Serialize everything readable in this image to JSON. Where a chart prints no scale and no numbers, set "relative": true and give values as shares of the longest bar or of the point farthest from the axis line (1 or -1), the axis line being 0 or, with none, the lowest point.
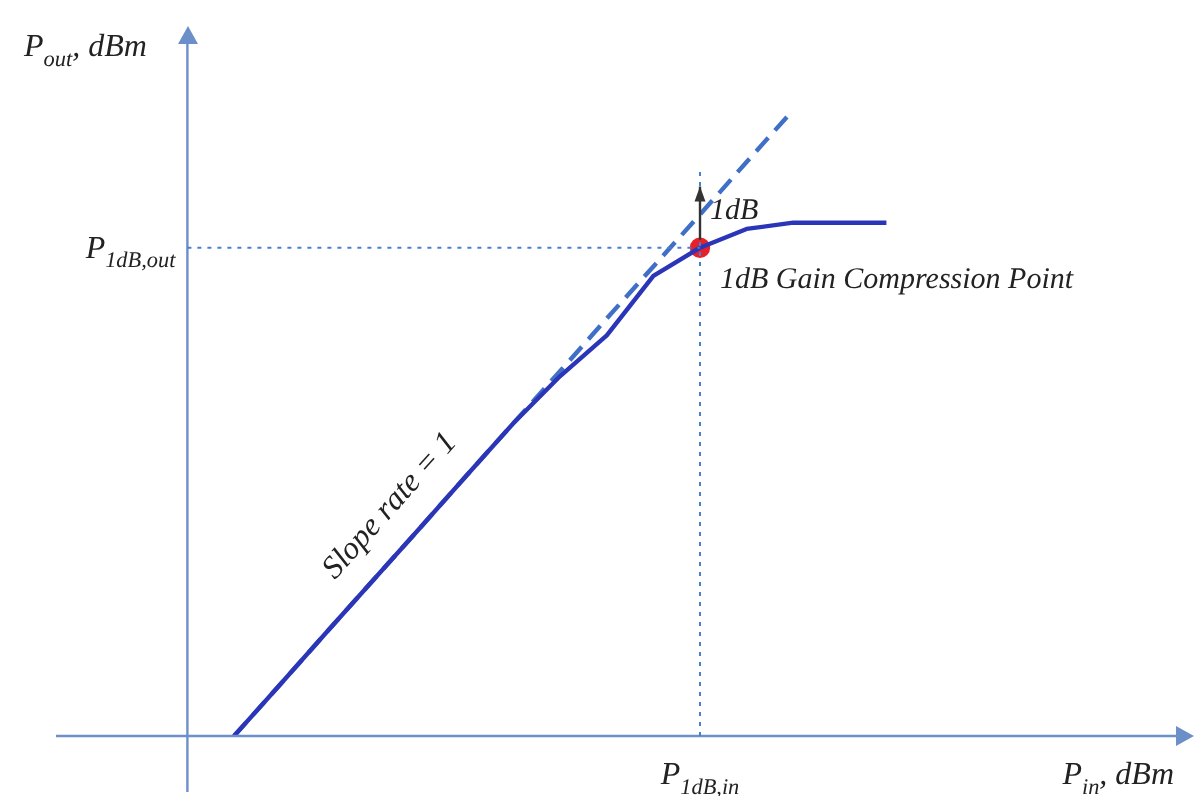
{
  "chart_data": {
    "type": "line",
    "relative": true,
    "xlabel": "P$_{in}$, dBm",
    "ylabel": "P$_{out}$, dBm",
    "legend": false,
    "categories": [
      null,
      null,
      null,
      null,
      null,
      null,
      null,
      null,
      null,
      null,
      null,
      null,
      null,
      null,
      null,
      null,
      null,
      null,
      null,
      null,
      null,
      null
    ],
    "series": [
      {
        "color": "#2b35b8",
        "line_style": "solid",
        "values": [
          null,
          0,
          0.083,
          0.167,
          0.25,
          0.333,
          0.417,
          0.5,
          0.575,
          0.64,
          0.735,
          0.78,
          0.81,
          0.82,
          0.82,
          0.82,
          null,
          null,
          null,
          null,
          null,
          null
        ]
      },
      {
        "color": "#3f6fc6",
        "line_style": "dashed",
        "values": [
          null,
          0,
          0.083,
          0.167,
          0.25,
          0.333,
          0.417,
          0.5,
          0.583,
          0.667,
          0.75,
          0.833,
          0.917,
          1,
          null,
          null,
          null,
          null,
          null,
          null,
          null,
          null
        ]
      },
      {
        "color": "#e8202a",
        "marker": "circle",
        "values": [
          null,
          null,
          null,
          null,
          null,
          null,
          null,
          null,
          null,
          null,
          null,
          0.78,
          null,
          null,
          null,
          null,
          null,
          null,
          null,
          null,
          null,
          null
        ]
      }
    ],
    "ref_lines": [
      {
        "axis": "y",
        "value": 0.78,
        "label": "P$_{1dB,out}$",
        "color": "#4a7fd0",
        "line_style": "dotted"
      }
    ],
    "annotations": [
      "1dB",
      "1dB Gain Compression Point",
      "Slope rate = 1",
      "P$_{1dB,in}$"
    ]
  }
}
